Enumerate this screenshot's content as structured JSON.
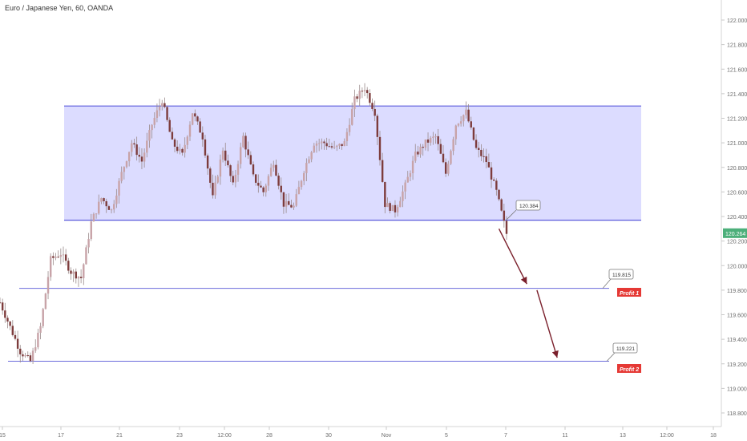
{
  "header": {
    "title": "Euro / Japanese Yen, 60, OANDA"
  },
  "colors": {
    "up_candle": "#c8a3a8",
    "down_candle": "#7d3c3c",
    "wick": "#9a8a8a",
    "range_fill": "#d6d6ff",
    "range_stroke": "#5b5bdc",
    "level_line": "#6b6bdc",
    "arrow": "#7a1f2b",
    "profit_badge": "#e53935",
    "price_badge": "#4caf7a",
    "axis_text": "#6b6b6b"
  },
  "chart_data": {
    "type": "candlestick",
    "title": "Euro / Japanese Yen, 60, OANDA",
    "x_ticks": [
      "15",
      "17",
      "21",
      "23",
      "12:00",
      "28",
      "30",
      "Nov",
      "5",
      "7",
      "11",
      "13",
      "12:00",
      "18"
    ],
    "y_ticks": [
      118.8,
      119.0,
      119.2,
      119.4,
      119.6,
      119.8,
      120.0,
      120.2,
      120.4,
      120.6,
      120.8,
      121.0,
      121.2,
      121.4,
      121.6,
      121.8,
      122.0
    ],
    "y_tick_labels": [
      "118.800",
      "119.000",
      "119.200",
      "119.400",
      "119.600",
      "119.800",
      "120.000",
      "120.200",
      "120.400",
      "120.600",
      "120.800",
      "121.000",
      "121.200",
      "121.400",
      "121.600",
      "121.800",
      "122.000"
    ],
    "ylim": [
      118.7,
      122.05
    ],
    "current_price": {
      "label": "120.264",
      "value": 120.264
    },
    "range_box": {
      "top": 121.3,
      "bottom": 120.37
    },
    "price_path": [
      [
        0,
        119.7
      ],
      [
        2,
        119.5
      ],
      [
        4,
        119.3
      ],
      [
        6,
        119.22
      ],
      [
        8,
        119.5
      ],
      [
        10,
        120.05
      ],
      [
        12,
        120.1
      ],
      [
        14,
        119.95
      ],
      [
        16,
        119.9
      ],
      [
        18,
        120.35
      ],
      [
        20,
        120.55
      ],
      [
        22,
        120.45
      ],
      [
        24,
        120.75
      ],
      [
        26,
        121.0
      ],
      [
        28,
        120.85
      ],
      [
        30,
        121.15
      ],
      [
        32,
        121.35
      ],
      [
        34,
        121.0
      ],
      [
        36,
        120.9
      ],
      [
        38,
        121.25
      ],
      [
        40,
        121.05
      ],
      [
        42,
        120.55
      ],
      [
        44,
        120.95
      ],
      [
        46,
        120.65
      ],
      [
        48,
        121.05
      ],
      [
        50,
        120.72
      ],
      [
        52,
        120.6
      ],
      [
        54,
        120.85
      ],
      [
        56,
        120.5
      ],
      [
        58,
        120.48
      ],
      [
        60,
        120.78
      ],
      [
        62,
        121.0
      ],
      [
        64,
        121.0
      ],
      [
        66,
        120.95
      ],
      [
        68,
        121.0
      ],
      [
        70,
        121.35
      ],
      [
        72,
        121.45
      ],
      [
        74,
        121.25
      ],
      [
        76,
        120.5
      ],
      [
        78,
        120.45
      ],
      [
        80,
        120.65
      ],
      [
        82,
        120.9
      ],
      [
        84,
        121.0
      ],
      [
        86,
        121.05
      ],
      [
        88,
        120.75
      ],
      [
        90,
        121.15
      ],
      [
        92,
        121.25
      ],
      [
        94,
        120.95
      ],
      [
        96,
        120.85
      ],
      [
        98,
        120.6
      ],
      [
        100,
        120.26
      ]
    ],
    "levels": [
      {
        "name": "Profit 1",
        "price_label": "119.815",
        "value": 119.815
      },
      {
        "name": "Profit 2",
        "price_label": "119.221",
        "value": 119.221
      }
    ],
    "callouts": [
      {
        "label": "120.384",
        "value": 120.384
      }
    ],
    "arrows": [
      {
        "from": [
          98.5,
          120.3
        ],
        "to": [
          104,
          119.85
        ]
      },
      {
        "from": [
          106,
          119.8
        ],
        "to": [
          110,
          119.25
        ]
      }
    ]
  }
}
